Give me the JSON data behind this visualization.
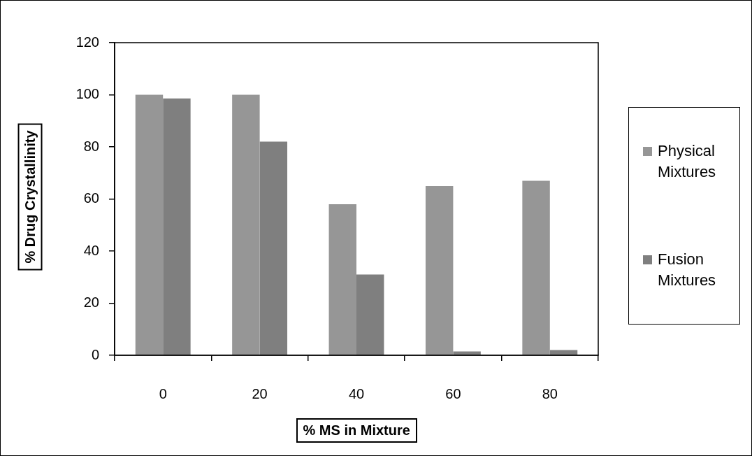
{
  "chart_data": {
    "type": "bar",
    "xlabel": "% MS in Mixture",
    "ylabel": "% Drug Crystallinity",
    "categories": [
      "0",
      "20",
      "40",
      "60",
      "80"
    ],
    "series": [
      {
        "name": "Physical Mixtures",
        "color": "#969696",
        "values": [
          100,
          100,
          58,
          65,
          67
        ]
      },
      {
        "name": "Fusion Mixtures",
        "color": "#7f7f7f",
        "values": [
          98.6,
          82,
          31,
          1.5,
          2
        ]
      }
    ],
    "ylim": [
      0,
      120
    ],
    "yticks": [
      0,
      20,
      40,
      60,
      80,
      100,
      120
    ],
    "grid": false,
    "legend": "right"
  }
}
